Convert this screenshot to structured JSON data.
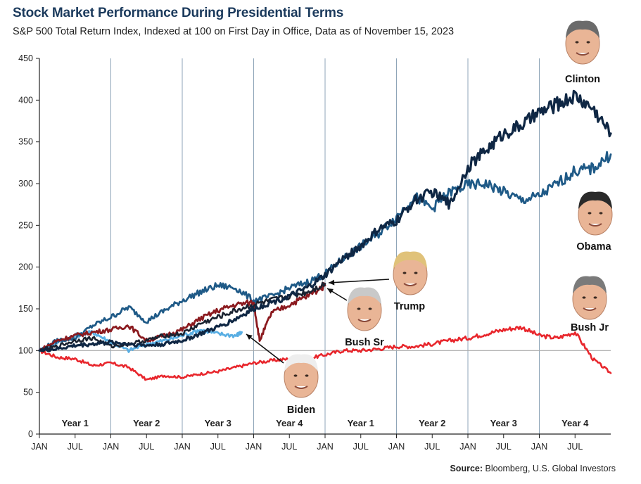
{
  "header": {
    "title": "Stock Market Performance During Presidential Terms",
    "subtitle": "S&P 500 Total Return Index, Indexed at 100 on First Day in Office, Data as of November 15, 2023"
  },
  "footer": {
    "source_label": "Source:",
    "source_text": "Bloomberg, U.S. Global Investors"
  },
  "colors": {
    "Clinton": "#0f2744",
    "Obama": "#1f5a87",
    "Bush Jr": "#e8262c",
    "Bush Sr": "#1a2230",
    "Trump": "#8b1a1f",
    "Biden": "#59aee3",
    "baseline": "#aaaaaa",
    "gridlines": "#8fa5b8"
  },
  "chart_data": {
    "type": "line",
    "title": "Stock Market Performance During Presidential Terms",
    "subtitle": "S&P 500 Total Return Index, Indexed at 100 on First Day in Office, Data as of November 15, 2023",
    "ylim": [
      0,
      450
    ],
    "yticks": [
      0,
      50,
      100,
      150,
      200,
      250,
      300,
      350,
      400,
      450
    ],
    "x_unit": "months since first day in office",
    "xlim": [
      0,
      96
    ],
    "xtick_labels": [
      "JAN",
      "JUL",
      "JAN",
      "JUL",
      "JAN",
      "JUL",
      "JAN",
      "JUL",
      "JAN",
      "JUL",
      "JAN",
      "JUL",
      "JAN",
      "JUL",
      "JAN",
      "JUL"
    ],
    "xtick_months": [
      0,
      6,
      12,
      18,
      24,
      30,
      36,
      42,
      48,
      54,
      60,
      66,
      72,
      78,
      84,
      90
    ],
    "year_labels": [
      "Year 1",
      "Year 2",
      "Year 3",
      "Year 4",
      "Year 1",
      "Year 2",
      "Year 3",
      "Year 4"
    ],
    "reference_line": 100,
    "grid": "vertical gridlines at each January",
    "legend": "none; labels next to faces",
    "series": [
      {
        "name": "Clinton",
        "x": [
          0,
          3,
          6,
          9,
          12,
          15,
          18,
          21,
          24,
          27,
          30,
          33,
          36,
          39,
          42,
          45,
          48,
          51,
          54,
          57,
          60,
          63,
          66,
          69,
          72,
          75,
          78,
          81,
          84,
          87,
          90,
          93,
          96
        ],
        "values": [
          100,
          102,
          106,
          108,
          110,
          108,
          106,
          108,
          112,
          120,
          128,
          138,
          150,
          158,
          165,
          175,
          190,
          210,
          225,
          245,
          255,
          280,
          290,
          275,
          320,
          340,
          360,
          370,
          385,
          395,
          405,
          390,
          360
        ]
      },
      {
        "name": "Obama",
        "x": [
          0,
          3,
          6,
          9,
          12,
          15,
          18,
          21,
          24,
          27,
          30,
          33,
          36,
          39,
          42,
          45,
          48,
          51,
          54,
          57,
          60,
          63,
          66,
          69,
          72,
          75,
          78,
          81,
          84,
          87,
          90,
          93,
          96
        ],
        "values": [
          100,
          112,
          115,
          130,
          140,
          152,
          135,
          148,
          160,
          170,
          178,
          175,
          160,
          165,
          175,
          182,
          192,
          210,
          225,
          240,
          260,
          285,
          270,
          290,
          298,
          300,
          290,
          280,
          285,
          300,
          315,
          318,
          335
        ]
      },
      {
        "name": "Bush Jr",
        "x": [
          0,
          3,
          6,
          9,
          12,
          15,
          18,
          21,
          24,
          27,
          30,
          33,
          36,
          39,
          42,
          45,
          48,
          51,
          54,
          57,
          60,
          63,
          66,
          69,
          72,
          75,
          78,
          81,
          84,
          87,
          90,
          93,
          96
        ],
        "values": [
          100,
          92,
          90,
          82,
          85,
          80,
          65,
          70,
          68,
          72,
          75,
          80,
          85,
          88,
          90,
          90,
          95,
          100,
          100,
          102,
          105,
          105,
          108,
          112,
          115,
          120,
          125,
          128,
          118,
          115,
          122,
          90,
          73
        ]
      },
      {
        "name": "Bush Sr",
        "x": [
          0,
          3,
          6,
          9,
          12,
          15,
          18,
          21,
          24,
          27,
          30,
          33,
          36,
          39,
          42,
          45,
          48
        ],
        "values": [
          100,
          105,
          112,
          115,
          105,
          108,
          112,
          118,
          120,
          132,
          140,
          148,
          155,
          160,
          165,
          170,
          180
        ]
      },
      {
        "name": "Trump",
        "x": [
          0,
          3,
          6,
          9,
          12,
          15,
          18,
          21,
          24,
          27,
          30,
          33,
          36,
          37,
          39,
          42,
          45,
          48
        ],
        "values": [
          100,
          112,
          118,
          122,
          125,
          130,
          112,
          118,
          125,
          138,
          148,
          155,
          158,
          112,
          145,
          155,
          165,
          178
        ]
      },
      {
        "name": "Biden",
        "x": [
          0,
          3,
          6,
          9,
          12,
          15,
          18,
          21,
          24,
          27,
          30,
          33,
          34
        ],
        "values": [
          100,
          110,
          118,
          122,
          110,
          100,
          108,
          112,
          118,
          125,
          120,
          118,
          122
        ]
      }
    ],
    "annotations": [
      {
        "label": "Clinton"
      },
      {
        "label": "Obama"
      },
      {
        "label": "Bush Jr"
      },
      {
        "label": "Trump"
      },
      {
        "label": "Bush Sr"
      },
      {
        "label": "Biden"
      }
    ]
  }
}
